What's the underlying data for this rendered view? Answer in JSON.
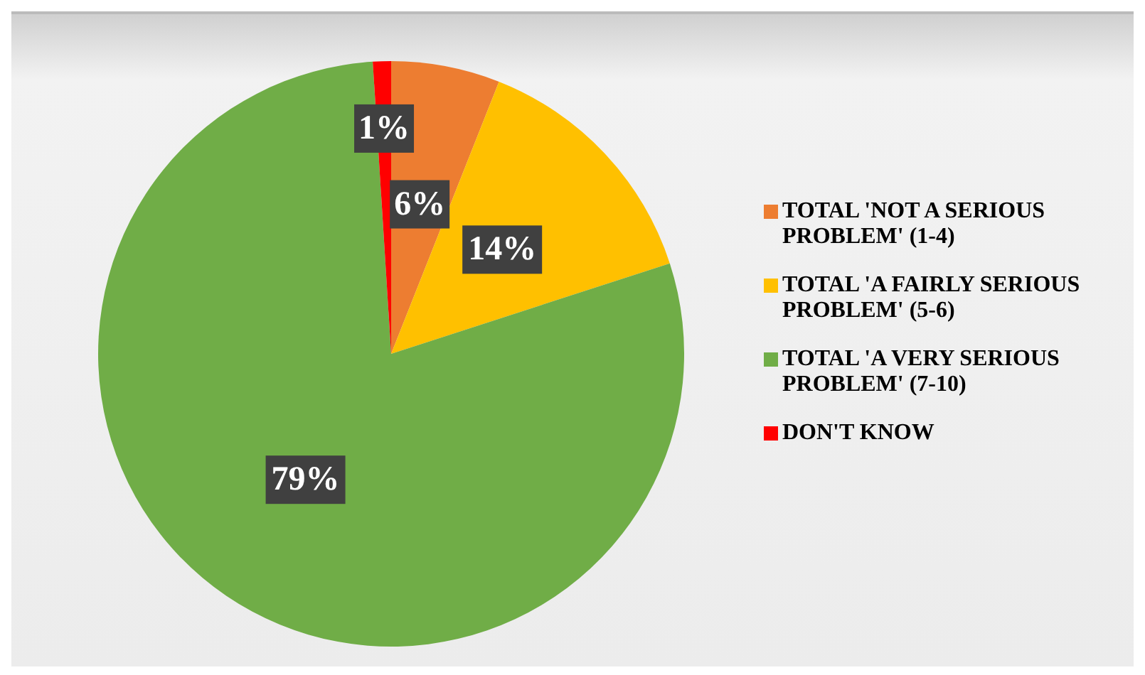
{
  "chart_data": {
    "type": "pie",
    "categories": [
      "TOTAL 'NOT A SERIOUS PROBLEM' (1-4)",
      "TOTAL 'A FAIRLY SERIOUS PROBLEM' (5-6)",
      "TOTAL 'A VERY SERIOUS PROBLEM' (7-10)",
      "DON'T KNOW"
    ],
    "values": [
      6,
      14,
      79,
      1
    ],
    "colors": [
      "#ed7d31",
      "#ffc000",
      "#70ad47",
      "#ff0000"
    ],
    "value_labels": [
      "6%",
      "14%",
      "79%",
      "1%"
    ],
    "legend": "right"
  }
}
